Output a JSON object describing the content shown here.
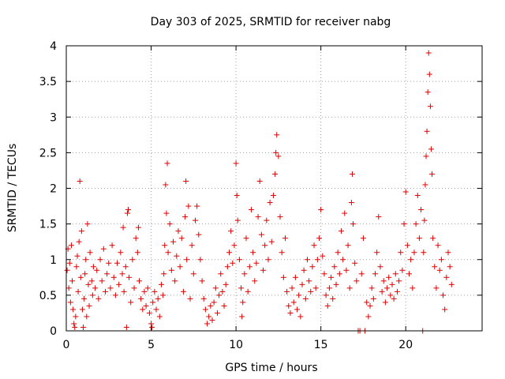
{
  "chart_data": {
    "type": "scatter",
    "title": "Day 303 of 2025, SRMTID for receiver nabg",
    "xlabel": "GPS time / hours",
    "ylabel": "SRMTID / TECUs",
    "xlim": [
      0,
      24.5
    ],
    "ylim": [
      0,
      4
    ],
    "xticks": [
      0,
      5,
      10,
      15,
      20
    ],
    "xtick_labels": [
      "0",
      "5",
      "10",
      "15",
      "20"
    ],
    "yticks": [
      0,
      0.5,
      1,
      1.5,
      2,
      2.5,
      3,
      3.5,
      4
    ],
    "ytick_labels": [
      "0",
      "0.5",
      "1",
      "1.5",
      "2",
      "2.5",
      "3",
      "3.5",
      "4"
    ],
    "grid": true,
    "series": [
      {
        "name": "SRMTID",
        "color": "#e00000",
        "marker": "plus",
        "points": [
          [
            0.05,
            0.85
          ],
          [
            0.1,
            1.15
          ],
          [
            0.15,
            0.6
          ],
          [
            0.2,
            0.95
          ],
          [
            0.25,
            0.4
          ],
          [
            0.3,
            1.2
          ],
          [
            0.35,
            0.7
          ],
          [
            0.4,
            0.3
          ],
          [
            0.45,
            0.1
          ],
          [
            0.5,
            0.05
          ],
          [
            0.55,
            0.2
          ],
          [
            0.6,
            0.9
          ],
          [
            0.65,
            1.05
          ],
          [
            0.7,
            0.55
          ],
          [
            0.75,
            1.25
          ],
          [
            0.8,
            2.1
          ],
          [
            0.85,
            0.75
          ],
          [
            0.9,
            1.4
          ],
          [
            0.95,
            0.3
          ],
          [
            1.0,
            0.05
          ],
          [
            1.05,
            0.45
          ],
          [
            1.1,
            0.8
          ],
          [
            1.15,
            1.0
          ],
          [
            1.2,
            0.2
          ],
          [
            1.25,
            1.5
          ],
          [
            1.3,
            0.65
          ],
          [
            1.35,
            0.35
          ],
          [
            1.4,
            1.1
          ],
          [
            1.5,
            0.7
          ],
          [
            1.55,
            0.5
          ],
          [
            1.6,
            0.9
          ],
          [
            1.7,
            0.6
          ],
          [
            1.8,
            0.85
          ],
          [
            1.9,
            0.45
          ],
          [
            2.0,
            1.0
          ],
          [
            2.1,
            0.7
          ],
          [
            2.2,
            1.15
          ],
          [
            2.3,
            0.55
          ],
          [
            2.4,
            0.8
          ],
          [
            2.5,
            0.95
          ],
          [
            2.6,
            0.6
          ],
          [
            2.7,
            1.2
          ],
          [
            2.8,
            0.75
          ],
          [
            2.9,
            0.5
          ],
          [
            3.0,
            0.95
          ],
          [
            3.1,
            0.65
          ],
          [
            3.2,
            1.1
          ],
          [
            3.3,
            0.8
          ],
          [
            3.35,
            1.45
          ],
          [
            3.4,
            0.55
          ],
          [
            3.5,
            0.9
          ],
          [
            3.55,
            0.05
          ],
          [
            3.6,
            1.65
          ],
          [
            3.65,
            1.7
          ],
          [
            3.7,
            0.75
          ],
          [
            3.8,
            0.4
          ],
          [
            3.9,
            1.0
          ],
          [
            4.0,
            0.6
          ],
          [
            4.1,
            1.3
          ],
          [
            4.2,
            1.1
          ],
          [
            4.25,
            1.45
          ],
          [
            4.3,
            0.7
          ],
          [
            4.4,
            0.45
          ],
          [
            4.5,
            0.3
          ],
          [
            4.6,
            0.55
          ],
          [
            4.7,
            0.35
          ],
          [
            4.8,
            0.6
          ],
          [
            4.9,
            0.25
          ],
          [
            5.0,
            0.1
          ],
          [
            5.05,
            0.05
          ],
          [
            5.1,
            0.4
          ],
          [
            5.2,
            0.55
          ],
          [
            5.3,
            0.3
          ],
          [
            5.4,
            0.45
          ],
          [
            5.5,
            0.2
          ],
          [
            5.6,
            0.65
          ],
          [
            5.7,
            0.5
          ],
          [
            5.75,
            0.8
          ],
          [
            5.8,
            1.2
          ],
          [
            5.85,
            2.05
          ],
          [
            5.9,
            1.65
          ],
          [
            5.95,
            2.35
          ],
          [
            6.0,
            1.1
          ],
          [
            6.1,
            1.5
          ],
          [
            6.2,
            0.85
          ],
          [
            6.3,
            1.25
          ],
          [
            6.4,
            0.7
          ],
          [
            6.5,
            1.05
          ],
          [
            6.6,
            1.4
          ],
          [
            6.7,
            0.9
          ],
          [
            6.8,
            1.3
          ],
          [
            6.9,
            0.55
          ],
          [
            7.0,
            1.6
          ],
          [
            7.05,
            2.1
          ],
          [
            7.1,
            1.0
          ],
          [
            7.2,
            1.75
          ],
          [
            7.3,
            0.45
          ],
          [
            7.4,
            1.2
          ],
          [
            7.5,
            0.8
          ],
          [
            7.6,
            1.55
          ],
          [
            7.7,
            1.75
          ],
          [
            7.8,
            1.35
          ],
          [
            7.9,
            1.0
          ],
          [
            8.0,
            0.7
          ],
          [
            8.1,
            0.45
          ],
          [
            8.2,
            0.3
          ],
          [
            8.3,
            0.1
          ],
          [
            8.4,
            0.2
          ],
          [
            8.5,
            0.35
          ],
          [
            8.6,
            0.15
          ],
          [
            8.7,
            0.4
          ],
          [
            8.8,
            0.6
          ],
          [
            8.9,
            0.25
          ],
          [
            9.0,
            0.5
          ],
          [
            9.1,
            0.8
          ],
          [
            9.2,
            0.55
          ],
          [
            9.3,
            0.35
          ],
          [
            9.4,
            0.65
          ],
          [
            9.5,
            0.9
          ],
          [
            9.6,
            1.1
          ],
          [
            9.7,
            1.4
          ],
          [
            9.8,
            0.95
          ],
          [
            9.9,
            1.2
          ],
          [
            10.0,
            2.35
          ],
          [
            10.05,
            1.9
          ],
          [
            10.1,
            1.55
          ],
          [
            10.2,
            1.0
          ],
          [
            10.3,
            0.6
          ],
          [
            10.35,
            0.2
          ],
          [
            10.4,
            0.4
          ],
          [
            10.5,
            0.8
          ],
          [
            10.6,
            1.3
          ],
          [
            10.7,
            0.55
          ],
          [
            10.8,
            0.9
          ],
          [
            10.9,
            1.7
          ],
          [
            11.0,
            1.1
          ],
          [
            11.1,
            0.7
          ],
          [
            11.2,
            0.95
          ],
          [
            11.3,
            1.6
          ],
          [
            11.4,
            2.1
          ],
          [
            11.5,
            1.35
          ],
          [
            11.6,
            0.85
          ],
          [
            11.7,
            1.2
          ],
          [
            11.8,
            1.55
          ],
          [
            11.9,
            1.0
          ],
          [
            12.0,
            1.8
          ],
          [
            12.1,
            1.25
          ],
          [
            12.2,
            1.9
          ],
          [
            12.3,
            2.2
          ],
          [
            12.35,
            2.5
          ],
          [
            12.4,
            2.75
          ],
          [
            12.5,
            2.45
          ],
          [
            12.6,
            1.6
          ],
          [
            12.7,
            1.1
          ],
          [
            12.8,
            0.75
          ],
          [
            12.9,
            1.3
          ],
          [
            13.0,
            0.55
          ],
          [
            13.1,
            0.35
          ],
          [
            13.2,
            0.25
          ],
          [
            13.3,
            0.6
          ],
          [
            13.4,
            0.4
          ],
          [
            13.5,
            0.75
          ],
          [
            13.6,
            0.3
          ],
          [
            13.7,
            0.5
          ],
          [
            13.8,
            0.2
          ],
          [
            13.9,
            0.65
          ],
          [
            14.0,
            0.85
          ],
          [
            14.1,
            0.45
          ],
          [
            14.2,
            1.0
          ],
          [
            14.3,
            0.7
          ],
          [
            14.4,
            0.55
          ],
          [
            14.5,
            0.9
          ],
          [
            14.6,
            1.2
          ],
          [
            14.7,
            0.6
          ],
          [
            14.8,
            1.0
          ],
          [
            14.9,
            1.3
          ],
          [
            15.0,
            1.7
          ],
          [
            15.1,
            1.05
          ],
          [
            15.2,
            0.8
          ],
          [
            15.3,
            0.5
          ],
          [
            15.4,
            0.35
          ],
          [
            15.5,
            0.6
          ],
          [
            15.6,
            0.75
          ],
          [
            15.7,
            0.45
          ],
          [
            15.8,
            0.9
          ],
          [
            15.9,
            0.65
          ],
          [
            16.0,
            1.1
          ],
          [
            16.1,
            0.8
          ],
          [
            16.2,
            1.4
          ],
          [
            16.3,
            1.0
          ],
          [
            16.4,
            1.65
          ],
          [
            16.5,
            0.85
          ],
          [
            16.6,
            1.2
          ],
          [
            16.7,
            0.6
          ],
          [
            16.8,
            1.8
          ],
          [
            16.85,
            2.2
          ],
          [
            16.9,
            1.5
          ],
          [
            17.0,
            0.95
          ],
          [
            17.1,
            0.7
          ],
          [
            17.2,
            0.0
          ],
          [
            17.3,
            0.0
          ],
          [
            17.4,
            0.8
          ],
          [
            17.5,
            1.3
          ],
          [
            17.6,
            0.0
          ],
          [
            17.7,
            0.4
          ],
          [
            17.8,
            0.2
          ],
          [
            17.9,
            0.35
          ],
          [
            18.0,
            0.6
          ],
          [
            18.1,
            0.45
          ],
          [
            18.2,
            0.8
          ],
          [
            18.3,
            1.1
          ],
          [
            18.4,
            1.6
          ],
          [
            18.5,
            0.9
          ],
          [
            18.6,
            0.55
          ],
          [
            18.7,
            0.7
          ],
          [
            18.8,
            0.4
          ],
          [
            18.9,
            0.6
          ],
          [
            19.0,
            0.75
          ],
          [
            19.1,
            0.5
          ],
          [
            19.2,
            0.65
          ],
          [
            19.3,
            0.45
          ],
          [
            19.4,
            0.8
          ],
          [
            19.5,
            0.55
          ],
          [
            19.6,
            0.7
          ],
          [
            19.7,
            1.1
          ],
          [
            19.8,
            0.85
          ],
          [
            19.9,
            1.5
          ],
          [
            20.0,
            1.95
          ],
          [
            20.1,
            1.2
          ],
          [
            20.2,
            0.8
          ],
          [
            20.3,
            1.0
          ],
          [
            20.4,
            0.6
          ],
          [
            20.5,
            1.1
          ],
          [
            20.6,
            1.5
          ],
          [
            20.7,
            1.9
          ],
          [
            20.8,
            1.3
          ],
          [
            20.9,
            1.7
          ],
          [
            21.0,
            0.0
          ],
          [
            21.05,
            1.1
          ],
          [
            21.1,
            1.55
          ],
          [
            21.15,
            2.05
          ],
          [
            21.2,
            2.45
          ],
          [
            21.25,
            2.8
          ],
          [
            21.3,
            3.35
          ],
          [
            21.35,
            3.9
          ],
          [
            21.4,
            3.6
          ],
          [
            21.45,
            3.15
          ],
          [
            21.5,
            2.55
          ],
          [
            21.55,
            2.2
          ],
          [
            21.6,
            1.3
          ],
          [
            21.7,
            0.9
          ],
          [
            21.8,
            0.6
          ],
          [
            21.9,
            1.2
          ],
          [
            22.0,
            0.85
          ],
          [
            22.1,
            1.0
          ],
          [
            22.2,
            0.5
          ],
          [
            22.3,
            0.3
          ],
          [
            22.4,
            0.75
          ],
          [
            22.5,
            1.1
          ],
          [
            22.6,
            0.9
          ],
          [
            22.7,
            0.65
          ]
        ]
      }
    ]
  }
}
